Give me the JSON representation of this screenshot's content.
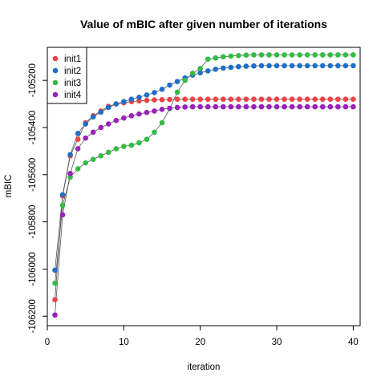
{
  "chart_data": {
    "type": "scatter",
    "title": "Value of mBIC after given number of iterations",
    "xlabel": "iteration",
    "ylabel": "mBIC",
    "xlim": [
      0,
      40.9
    ],
    "ylim": [
      -106240,
      -105060
    ],
    "xticks": [
      0,
      10,
      20,
      30,
      40
    ],
    "yticks": [
      -106200,
      -106000,
      -105800,
      -105600,
      -105400,
      -105200
    ],
    "xtick_labels": [
      "0",
      "10",
      "20",
      "30",
      "40"
    ],
    "ytick_labels": [
      "-106200",
      "-106000",
      "-105800",
      "-105600",
      "-105400",
      "-105200"
    ],
    "grid": false,
    "legend_position": "top-left",
    "x": [
      1,
      2,
      3,
      4,
      5,
      6,
      7,
      8,
      9,
      10,
      11,
      12,
      13,
      14,
      15,
      16,
      17,
      18,
      19,
      20,
      21,
      22,
      23,
      24,
      25,
      26,
      27,
      28,
      29,
      30,
      31,
      32,
      33,
      34,
      35,
      36,
      37,
      38,
      39,
      40
    ],
    "series": [
      {
        "name": "init1",
        "color": "#ee4444",
        "values": [
          -106130,
          -105690,
          -105520,
          -105450,
          -105380,
          -105350,
          -105330,
          -105310,
          -105300,
          -105295,
          -105290,
          -105287,
          -105285,
          -105283,
          -105282,
          -105281,
          -105280,
          -105280,
          -105280,
          -105280,
          -105280,
          -105280,
          -105280,
          -105280,
          -105280,
          -105280,
          -105280,
          -105280,
          -105280,
          -105280,
          -105280,
          -105280,
          -105280,
          -105280,
          -105280,
          -105280,
          -105280,
          -105280,
          -105280,
          -105280
        ]
      },
      {
        "name": "init2",
        "color": "#1f6fc8",
        "values": [
          -106005,
          -105685,
          -105515,
          -105425,
          -105385,
          -105355,
          -105335,
          -105315,
          -105300,
          -105290,
          -105280,
          -105272,
          -105262,
          -105252,
          -105238,
          -105220,
          -105205,
          -105190,
          -105178,
          -105168,
          -105160,
          -105153,
          -105148,
          -105145,
          -105142,
          -105140,
          -105139,
          -105138,
          -105138,
          -105138,
          -105138,
          -105138,
          -105138,
          -105138,
          -105138,
          -105138,
          -105138,
          -105138,
          -105138,
          -105138
        ]
      },
      {
        "name": "init3",
        "color": "#33bb44",
        "values": [
          -106060,
          -105730,
          -105610,
          -105575,
          -105550,
          -105535,
          -105520,
          -105505,
          -105490,
          -105480,
          -105475,
          -105465,
          -105450,
          -105420,
          -105380,
          -105320,
          -105250,
          -105200,
          -105170,
          -105150,
          -105110,
          -105105,
          -105100,
          -105097,
          -105095,
          -105093,
          -105092,
          -105092,
          -105092,
          -105092,
          -105092,
          -105092,
          -105092,
          -105092,
          -105092,
          -105092,
          -105092,
          -105092,
          -105092,
          -105092
        ]
      },
      {
        "name": "init4",
        "color": "#9922bb",
        "values": [
          -106195,
          -105770,
          -105595,
          -105490,
          -105445,
          -105420,
          -105400,
          -105385,
          -105370,
          -105360,
          -105350,
          -105343,
          -105336,
          -105330,
          -105323,
          -105318,
          -105315,
          -105313,
          -105312,
          -105312,
          -105312,
          -105312,
          -105312,
          -105312,
          -105312,
          -105312,
          -105312,
          -105312,
          -105312,
          -105312,
          -105312,
          -105312,
          -105312,
          -105312,
          -105312,
          -105312,
          -105312,
          -105312,
          -105312,
          -105312
        ]
      }
    ]
  }
}
